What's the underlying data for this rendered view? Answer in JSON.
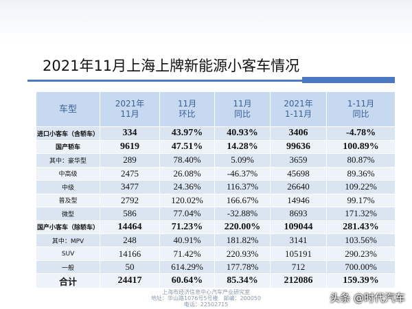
{
  "title": "2021年11月上海上牌新能源小客车情况",
  "table": {
    "header": [
      [
        "车型"
      ],
      [
        "2021年",
        "11月"
      ],
      [
        "11月",
        "环比"
      ],
      [
        "11月",
        "同比"
      ],
      [
        "2021年",
        "1-11月"
      ],
      [
        "1-11月",
        "同比"
      ]
    ],
    "rows": [
      [
        "进口小客车（含轿车）",
        "334",
        "43.97%",
        "40.93%",
        "3406",
        "-4.78%"
      ],
      [
        "国产轿车",
        "9619",
        "47.51%",
        "14.28%",
        "99636",
        "100.89%"
      ],
      [
        "其中：豪华型",
        "289",
        "78.40%",
        "5.09%",
        "3659",
        "80.87%"
      ],
      [
        "中高级",
        "2475",
        "26.08%",
        "-46.37%",
        "45698",
        "89.36%"
      ],
      [
        "中级",
        "3477",
        "24.36%",
        "116.37%",
        "26640",
        "109.22%"
      ],
      [
        "普及型",
        "2792",
        "120.02%",
        "166.67%",
        "14946",
        "99.17%"
      ],
      [
        "微型",
        "586",
        "77.04%",
        "-32.88%",
        "8693",
        "171.32%"
      ],
      [
        "国产小客车（除轿车）",
        "14464",
        "71.23%",
        "220.00%",
        "109044",
        "281.43%"
      ],
      [
        "其中：MPV",
        "248",
        "40.91%",
        "181.82%",
        "3141",
        "103.56%"
      ],
      [
        "SUV",
        "14166",
        "71.42%",
        "220.93%",
        "105191",
        "290.23%"
      ],
      [
        "一般",
        "50",
        "614.29%",
        "177.78%",
        "712",
        "700.00%"
      ],
      [
        "合计",
        "24417",
        "60.64%",
        "85.34%",
        "212086",
        "159.39%"
      ]
    ]
  },
  "footer": [
    "上海市经济信息中心汽车产业研究室",
    "地址：华山路1076号5号楼　邮编：200050",
    "电话：22502715"
  ],
  "watermark": "头条 @时代汽车"
}
